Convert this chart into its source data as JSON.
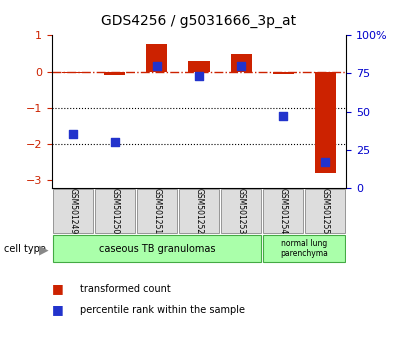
{
  "title": "GDS4256 / g5031666_3p_at",
  "samples": [
    "GSM501249",
    "GSM501250",
    "GSM501251",
    "GSM501252",
    "GSM501253",
    "GSM501254",
    "GSM501255"
  ],
  "red_values": [
    -0.05,
    -0.08,
    0.75,
    0.3,
    0.5,
    -0.07,
    -2.8
  ],
  "blue_percentiles": [
    35,
    30,
    80,
    73,
    80,
    47,
    17
  ],
  "ylim_left": [
    -3.2,
    1.0
  ],
  "ylim_right": [
    0,
    100
  ],
  "yticks_left": [
    1,
    0,
    -1,
    -2,
    -3
  ],
  "yticks_right": [
    100,
    75,
    50,
    25,
    0
  ],
  "bar_color": "#cc2200",
  "dot_color": "#2233cc",
  "hline_color": "#cc2200",
  "dotted_line_color": "#000000",
  "bg_color": "#ffffff",
  "tick_label_color_left": "#cc2200",
  "tick_label_color_right": "#0000cc",
  "legend_red_label": "transformed count",
  "legend_blue_label": "percentile rank within the sample",
  "cell_type_label": "cell type",
  "group1_label": "caseous TB granulomas",
  "group2_label": "normal lung\nparenchyma",
  "group_color": "#aaffaa",
  "group_edge_color": "#44aa44",
  "sample_box_color": "#dddddd",
  "sample_box_edge": "#888888"
}
